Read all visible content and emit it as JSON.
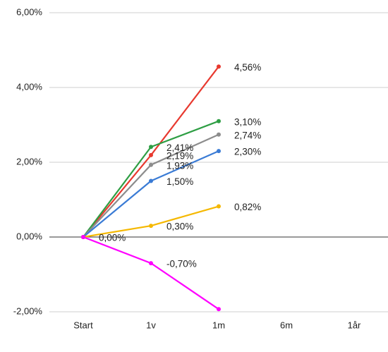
{
  "chart_data": {
    "type": "line",
    "categories": [
      "Start",
      "1v",
      "1m",
      "6m",
      "1år"
    ],
    "ylim": [
      -2,
      6
    ],
    "yticks": [
      {
        "value": -2,
        "label": "-2,00%"
      },
      {
        "value": 0,
        "label": "0,00%"
      },
      {
        "value": 2,
        "label": "2,00%"
      },
      {
        "value": 4,
        "label": "4,00%"
      },
      {
        "value": 6,
        "label": "6,00%"
      }
    ],
    "grid": true,
    "series": [
      {
        "color": "#e8392f",
        "values": [
          0,
          2.19,
          4.56,
          null,
          null
        ],
        "value_labels": [
          null,
          "2,19%",
          "4,56%",
          null,
          null
        ]
      },
      {
        "color": "#2e9e44",
        "values": [
          0,
          2.41,
          3.1,
          null,
          null
        ],
        "value_labels": [
          null,
          "2,41%",
          "3,10%",
          null,
          null
        ]
      },
      {
        "color": "#8c8c8c",
        "values": [
          0,
          1.93,
          2.74,
          null,
          null
        ],
        "value_labels": [
          "0,00%",
          "1,93%",
          "2,74%",
          null,
          null
        ]
      },
      {
        "color": "#3a7bd5",
        "values": [
          0,
          1.5,
          2.3,
          null,
          null
        ],
        "value_labels": [
          null,
          "1,50%",
          "2,30%",
          null,
          null
        ]
      },
      {
        "color": "#f5b800",
        "values": [
          0,
          0.3,
          0.82,
          null,
          null
        ],
        "value_labels": [
          null,
          "0,30%",
          "0,82%",
          null,
          null
        ]
      },
      {
        "color": "#ff00ff",
        "values": [
          0,
          -0.7,
          -1.93,
          null,
          null
        ],
        "value_labels": [
          null,
          "-0,70%",
          null,
          null,
          null
        ]
      }
    ]
  }
}
